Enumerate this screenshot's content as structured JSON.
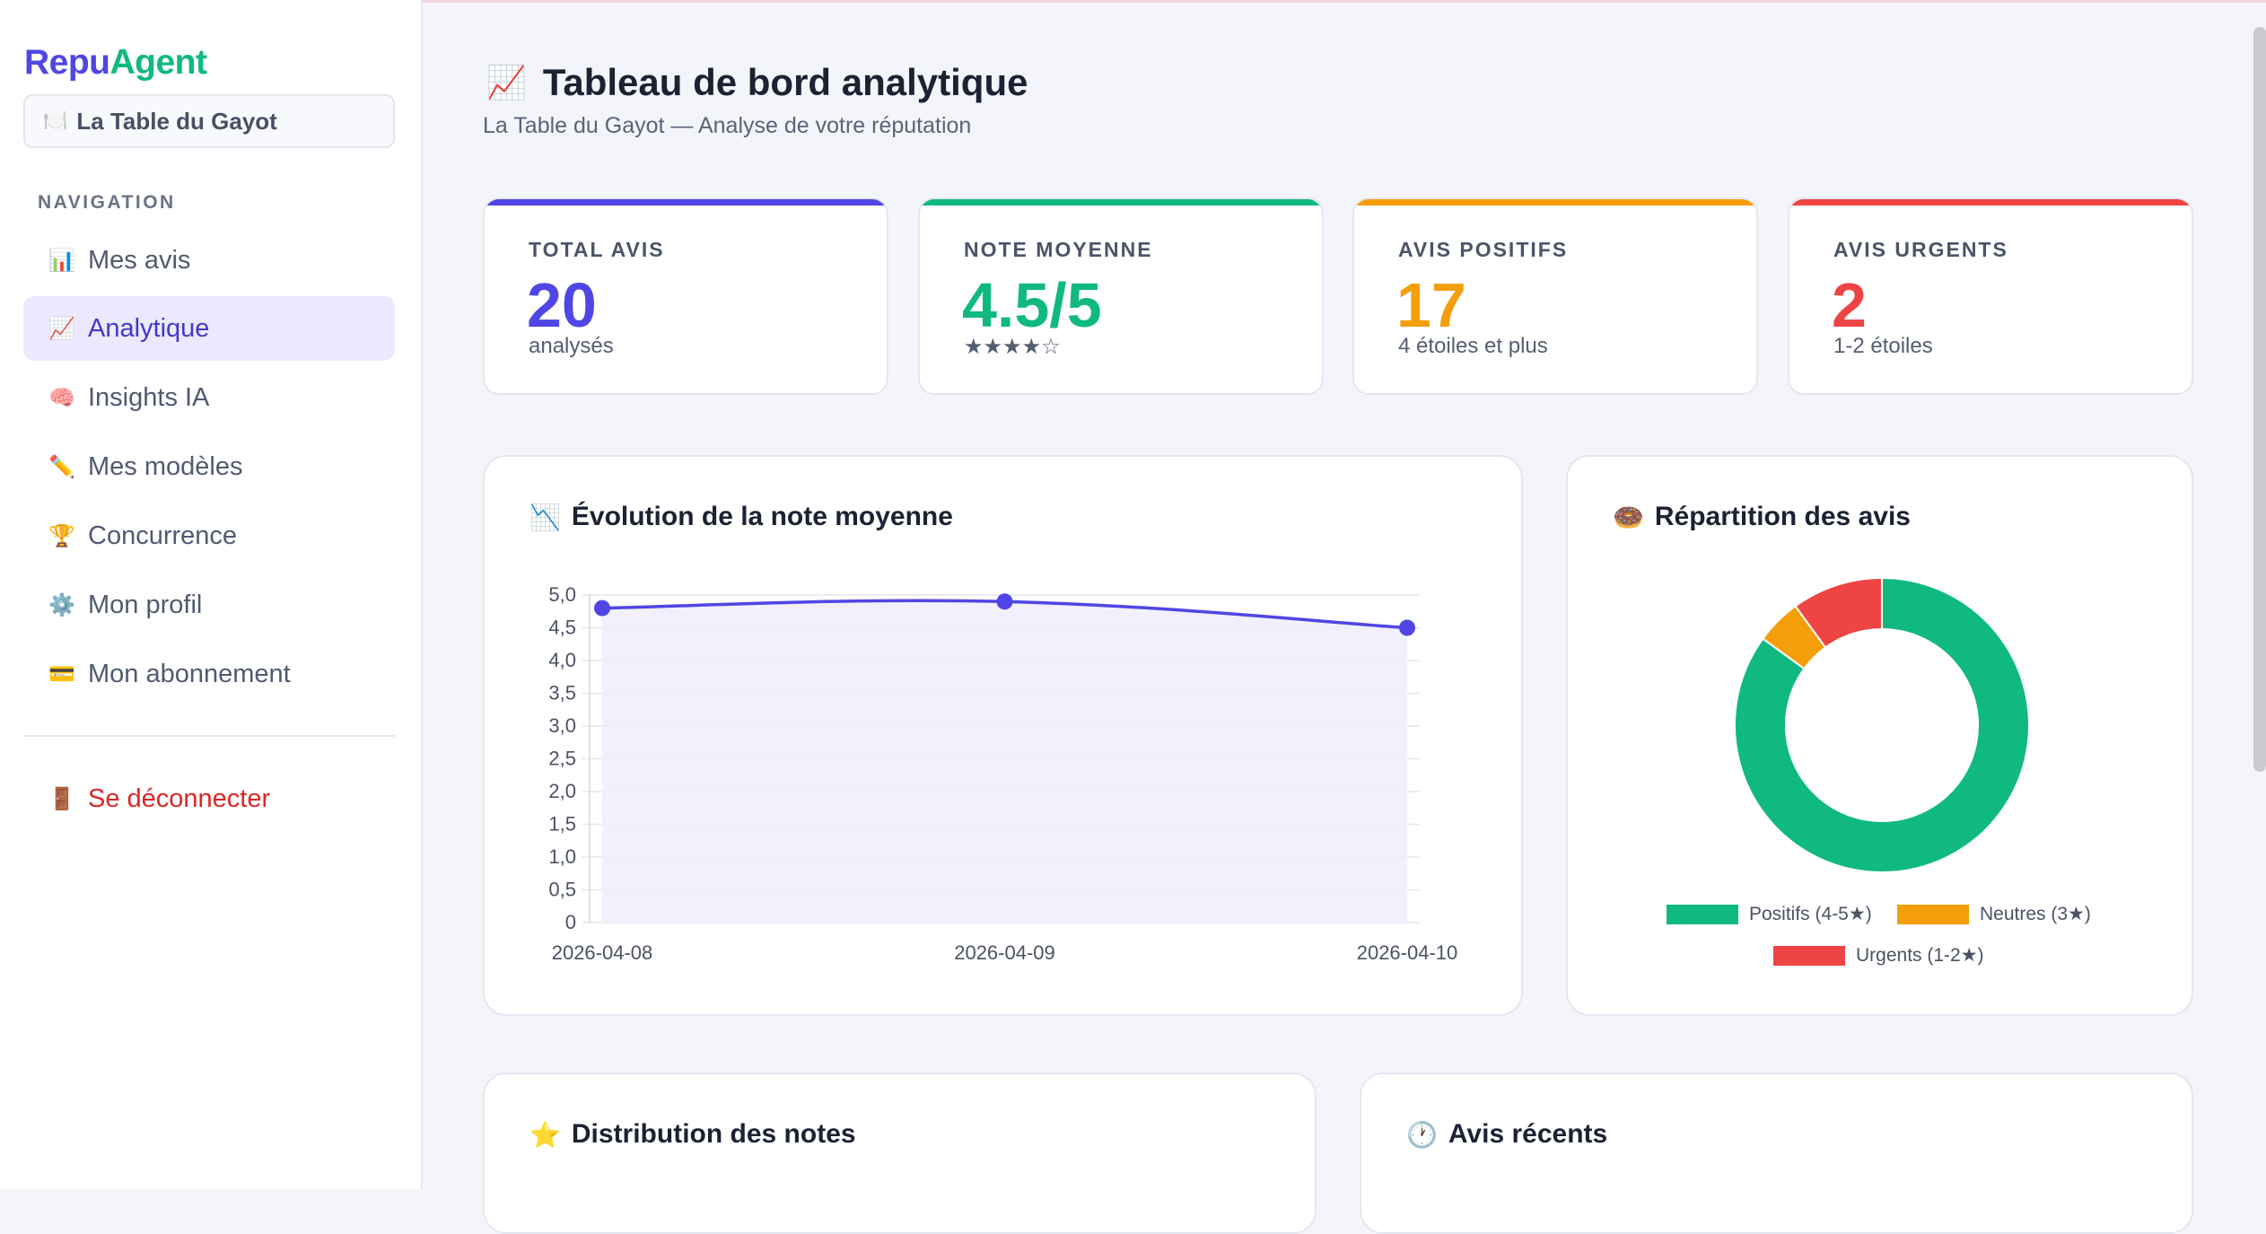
{
  "sidebar": {
    "logo_part1": "Repu",
    "logo_part2": "Agent",
    "restaurant": "La Table du Gayot",
    "nav_heading": "NAVIGATION",
    "items": [
      {
        "label": "Mes avis",
        "icon": "📊"
      },
      {
        "label": "Analytique",
        "icon": "📈"
      },
      {
        "label": "Insights IA",
        "icon": "🧠"
      },
      {
        "label": "Mes modèles",
        "icon": "✏️"
      },
      {
        "label": "Concurrence",
        "icon": "🏆"
      },
      {
        "label": "Mon profil",
        "icon": "⚙️"
      },
      {
        "label": "Mon abonnement",
        "icon": "💳"
      }
    ],
    "logout": "Se déconnecter",
    "logout_icon": "🚪"
  },
  "header": {
    "icon": "📈",
    "title": "Tableau de bord analytique",
    "subtitle": "La Table du Gayot — Analyse de votre réputation"
  },
  "kpis": [
    {
      "label": "Total avis",
      "value": "20",
      "sub": "analysés",
      "color": "#4f46e5"
    },
    {
      "label": "Note moyenne",
      "value": "4.5/5",
      "sub": "★★★★☆",
      "color": "#10b981"
    },
    {
      "label": "Avis positifs",
      "value": "17",
      "sub": "4 étoiles et plus",
      "color": "#f59e0b"
    },
    {
      "label": "Avis urgents",
      "value": "2",
      "sub": "1-2 étoiles",
      "color": "#ef4444"
    }
  ],
  "cards": {
    "evolution_title": "Évolution de la note moyenne",
    "evolution_icon": "📉",
    "repartition_title": "Répartition des avis",
    "repartition_icon": "🍩",
    "distribution_title": "Distribution des notes",
    "distribution_icon": "⭐",
    "recent_title": "Avis récents",
    "recent_icon": "🕐"
  },
  "chart_data": [
    {
      "type": "line",
      "title": "Évolution de la note moyenne",
      "x": [
        "2026-04-08",
        "2026-04-09",
        "2026-04-10"
      ],
      "series": [
        {
          "values": [
            4.8,
            4.9,
            4.5
          ]
        }
      ],
      "ylim": [
        0,
        5
      ],
      "yticks": [
        "0",
        "0,5",
        "1,0",
        "1,5",
        "2,0",
        "2,5",
        "3,0",
        "3,5",
        "4,0",
        "4,5",
        "5,0"
      ],
      "grid": true,
      "line_color": "#4f46e5",
      "fill_color": "#efeefc"
    },
    {
      "type": "pie",
      "title": "Répartition des avis",
      "categories": [
        "Positifs (4-5★)",
        "Neutres (3★)",
        "Urgents (1-2★)"
      ],
      "values": [
        17,
        1,
        2
      ],
      "colors": [
        "#10b981",
        "#f59e0b",
        "#ef4444"
      ],
      "legend": "bottom"
    }
  ]
}
